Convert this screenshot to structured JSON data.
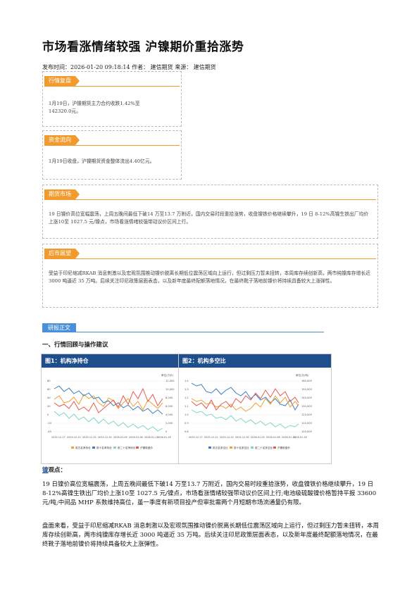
{
  "article": {
    "title": "市场看涨情绪较强 沪镍期价重拾涨势",
    "meta": "发布时间：2026-01-20 09:18:14 作者：  建信期货 来源：  建信期货"
  },
  "boxes": [
    {
      "tag": "行情复盘",
      "text": "1月19日，沪镍期货主力合约收跌1.42%至142320.0元。"
    },
    {
      "tag": "资金流向",
      "text": "1月19日收盘，沪镍期货资金整体流出4.40亿元。"
    },
    {
      "tag": "期货市场",
      "text": "19 日镍价高位宽幅震荡，上周五晚间最低下破14 万至13.7 万附近，国内交易时段重拾涨势，收盘镍铁价格继续攀升，19 日 8-12%高镍生铁出厂均价上涨10至 1027.5 元/镍点，市场看涨情绪较强带动议价区间上行。"
    },
    {
      "tag": "后市展望",
      "text": "受益于印尼缩减RKAB 消息刺激以及宏观氛围推动镍价脱离长期低位震荡区域向上运行，但过剩压力暂未扭转，本周库存续创新高，两市纯镍库存增长近 3000 吨逼近 35 万吨。后续关注印尼政策层面表态，以及新年度最终配额落地情况，在最终靴子落地前镍价将持续具备较大上涨弹性。"
    }
  ],
  "section": {
    "tag": "研报正文",
    "heading": "一、行情回顾与操作建议"
  },
  "figures": [
    {
      "title": "图1：机构净持仓",
      "y_left": [
        "80",
        "60",
        "40",
        "20",
        "0",
        "-20",
        "-40"
      ],
      "y_right": [
        "单位(万手)",
        "12,000",
        "10,000",
        "8,000",
        "6,000",
        "4,000",
        "2,000",
        "0"
      ],
      "x": [
        "2025-12-17",
        "2025-12-22",
        "2025-12-25",
        "2025-12-30",
        "2026-01-05",
        "2026-01-08",
        "2026-01-13",
        "2026-01-16"
      ],
      "legend": [
        "前五名净持仓",
        "前十名净持仓",
        "前二十名净持仓",
        "沪镍收盘价"
      ],
      "colors": [
        "#f0a030",
        "#3a7fc0",
        "#7fd3c8",
        "#e8584f"
      ]
    },
    {
      "title": "图2：机构多空比",
      "y_left": [
        "1.4",
        "1.3",
        "1.2",
        "1.1",
        "1.0",
        "0.9",
        "0.8"
      ],
      "y_right": [
        "单位(元/吨)",
        "160,000",
        "150,000",
        "140,000",
        "130,000",
        "120,000",
        "110,000",
        "100,000"
      ],
      "x": [
        "2025-12-17",
        "2025-12-22",
        "2025-12-25",
        "2025-12-30",
        "2026-01-05",
        "2026-01-08",
        "2026-01-13",
        "2026-01-16"
      ],
      "legend": [
        "前五名多空比",
        "前十名多空比",
        "前二十名多空比",
        "沪镍收盘价"
      ],
      "colors": [
        "#3a7fc0",
        "#f0a030",
        "#7fd3c8",
        "#e8584f"
      ]
    }
  ],
  "view": {
    "k": "镍",
    "label": "观点："
  },
  "paragraphs": [
    "19 日镍价高位宽幅震荡，上周五晚间最低下破14 万至13.7 万附近，国内交易时段重拾涨势，收盘镍铁价格继续攀升，19 日 8-12%高镍生铁出厂均价上涨10至 1027.5 元/镍点，市场看涨情绪较强带动议价区间上行;电池级硫酸镍价格暂持平报 33600 元/吨;中间品 MHP 系数维持高位，虽一季度有新项目投产但审批需两个月短期市场流通量仍有限。",
    "盘面来看，受益于印尼缩减RKAB 消息刺激以及宏观氛围推动镍价脱离长期低位震荡区域向上运行，但过剩压力暂未扭转，本周库存续创新高，两市纯镍库存增长近 3000 吨逼近 35 万吨。后续关注印尼政策层面表态，以及新年度最终配额落地情况，在最终靴子落地前镍价将持续具备较大上涨弹性。"
  ]
}
